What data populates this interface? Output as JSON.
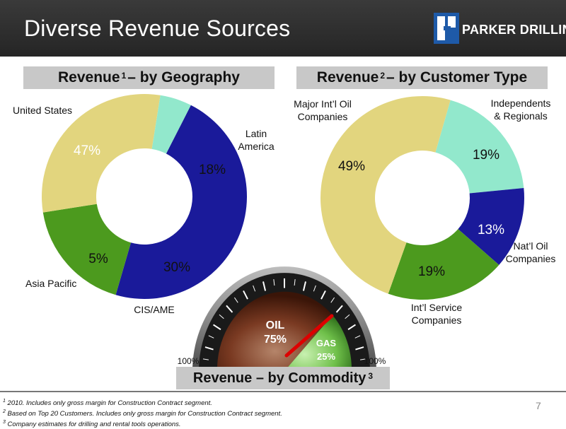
{
  "slide": {
    "title": "Diverse Revenue Sources",
    "logo_text": "PARKER DRILLING",
    "page_number": "7"
  },
  "colors": {
    "navy": "#1a1a9a",
    "green": "#4c9a1e",
    "khaki": "#e2d57e",
    "aqua": "#92e8cc",
    "header_bg": "#2b2b2b",
    "section_bar": "#c8c8c8",
    "needle": "#dd0000"
  },
  "sections": {
    "geography": {
      "label": "Revenue",
      "sup": "1",
      "suffix": "– by Geography"
    },
    "customer": {
      "label": "Revenue",
      "sup": "2",
      "suffix": "– by Customer Type"
    },
    "commodity": {
      "label": "Revenue – by Commodity",
      "sup": "3"
    }
  },
  "chart_data": [
    {
      "type": "pie",
      "name": "Revenue by Geography",
      "slices": [
        {
          "label": "United States",
          "value": 47,
          "color": "#1a1a9a"
        },
        {
          "label": "Latin America",
          "value": 18,
          "color": "#4c9a1e"
        },
        {
          "label": "CIS/AME",
          "value": 30,
          "color": "#e2d57e"
        },
        {
          "label": "Asia Pacific",
          "value": 5,
          "color": "#92e8cc"
        }
      ],
      "donut": true
    },
    {
      "type": "pie",
      "name": "Revenue by Customer Type",
      "slices": [
        {
          "label": "Independents & Regionals",
          "value": 19,
          "color": "#92e8cc"
        },
        {
          "label": "Nat'l Oil Companies",
          "value": 13,
          "color": "#1a1a9a"
        },
        {
          "label": "Int'l Service Companies",
          "value": 19,
          "color": "#4c9a1e"
        },
        {
          "label": "Major Int'l Oil Companies",
          "value": 49,
          "color": "#e2d57e"
        }
      ],
      "donut": true
    },
    {
      "type": "gauge",
      "name": "Revenue by Commodity",
      "segments": [
        {
          "label": "OIL",
          "value": 75
        },
        {
          "label": "GAS",
          "value": 25
        }
      ],
      "scale_labels": [
        "100%",
        "100%"
      ]
    }
  ],
  "labels": {
    "geography": {
      "us": "United States",
      "latam_1": "Latin",
      "latam_2": "America",
      "cis": "CIS/AME",
      "asia": "Asia Pacific"
    },
    "customer": {
      "major_1": "Major Int’l Oil",
      "major_2": "Companies",
      "indep_1": "Independents",
      "indep_2": "& Regionals",
      "natl_1": "Nat’l Oil",
      "natl_2": "Companies",
      "intl_1": "Int’l Service",
      "intl_2": "Companies"
    },
    "gauge": {
      "oil": "OIL",
      "oil_pct": "75%",
      "gas": "GAS",
      "gas_pct": "25%",
      "left_scale": "100%",
      "right_scale": "100%"
    }
  },
  "pct_labels": {
    "geography": [
      "47%",
      "18%",
      "30%",
      "5%"
    ],
    "customer": [
      "19%",
      "13%",
      "19%",
      "49%"
    ]
  },
  "footnotes": [
    {
      "sup": "1",
      "text": "2010.  Includes only gross margin for Construction Contract segment."
    },
    {
      "sup": "2",
      "text": "Based on Top 20 Customers.  Includes only gross margin for Construction Contract segment."
    },
    {
      "sup": "3",
      "text": "Company estimates for drilling and rental tools operations."
    }
  ]
}
